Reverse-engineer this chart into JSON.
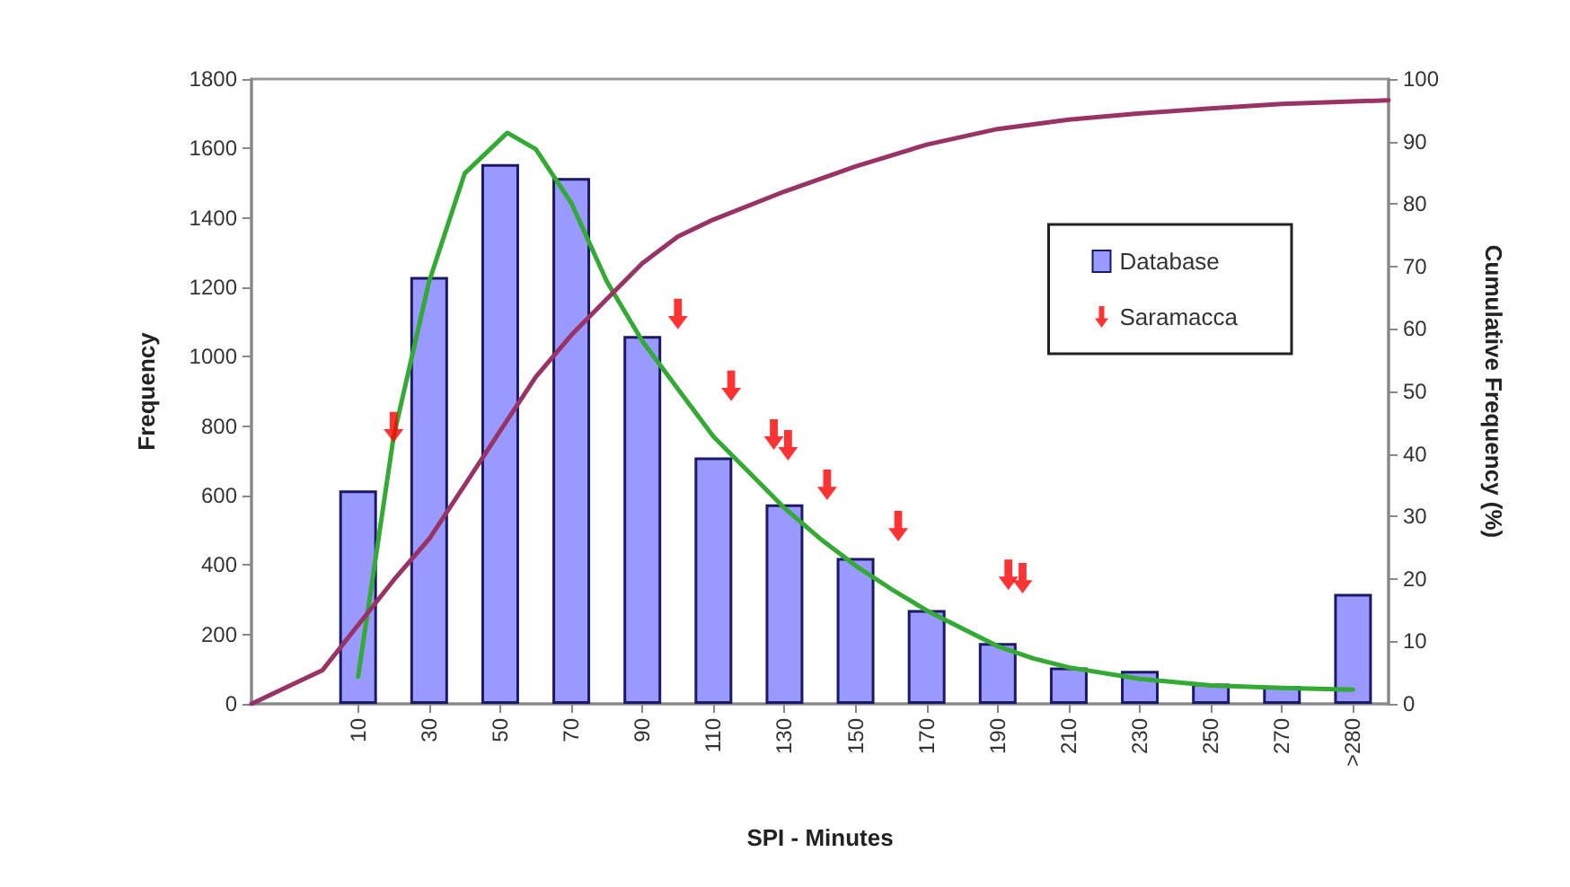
{
  "chart_data": {
    "type": "bar",
    "xlabel": "SPI - Minutes",
    "ylabel": "Frequency",
    "y2label": "Cumulative Frequency (%)",
    "xlim": [
      -20,
      300
    ],
    "xticks": [
      10,
      30,
      50,
      70,
      90,
      110,
      130,
      150,
      170,
      190,
      210,
      230,
      250,
      270,
      {
        "value": 290,
        "label": ">280"
      }
    ],
    "ylim": [
      0,
      1800
    ],
    "yticks": [
      0,
      200,
      400,
      600,
      800,
      1000,
      1200,
      1400,
      1600,
      1800
    ],
    "y2lim": [
      0,
      100
    ],
    "y2ticks": [
      0,
      10,
      20,
      30,
      40,
      50,
      60,
      70,
      80,
      90,
      100
    ],
    "grid": false,
    "legend": "right",
    "series": [
      {
        "name": "Database",
        "color": "#9999ff",
        "x": [
          10,
          30,
          50,
          70,
          90,
          110,
          130,
          150,
          170,
          190,
          210,
          230,
          250,
          270,
          290
        ],
        "values": [
          615,
          1230,
          1555,
          1515,
          1060,
          710,
          575,
          420,
          270,
          175,
          105,
          95,
          58,
          52,
          317
        ]
      },
      {
        "type": "line",
        "color": "#33aa33",
        "line_style": "solid",
        "marker": "none",
        "x": [
          10,
          20,
          30,
          40,
          52,
          60,
          70,
          80,
          90,
          100,
          110,
          120,
          130,
          140,
          150,
          160,
          170,
          180,
          190,
          200,
          210,
          230,
          250,
          270,
          290
        ],
        "values": [
          78,
          770,
          1217,
          1528,
          1645,
          1598,
          1443,
          1217,
          1045,
          907,
          770,
          667,
          564,
          476,
          398,
          331,
          269,
          217,
          166,
          131,
          105,
          72,
          53,
          46,
          41
        ]
      },
      {
        "type": "line",
        "axis": "y2",
        "color": "#993366",
        "line_style": "solid",
        "marker": "none",
        "x": [
          -20,
          0,
          10,
          20,
          30,
          40,
          50,
          60,
          70,
          80,
          90,
          100,
          110,
          130,
          150,
          170,
          190,
          210,
          230,
          250,
          270,
          300
        ],
        "values": [
          0,
          5.4,
          12.6,
          19.8,
          26.4,
          35,
          43.7,
          52.3,
          59,
          64.8,
          70.5,
          74.8,
          77.5,
          82,
          86,
          89.5,
          92,
          93.5,
          94.5,
          95.3,
          96,
          96.6
        ]
      },
      {
        "name": "Saramacca",
        "type": "scatter",
        "color": "#ff0000",
        "x": [
          20,
          100,
          115,
          127,
          131,
          142,
          162,
          193,
          197
        ],
        "values": [
          797,
          1123,
          916,
          776,
          745,
          631,
          512,
          372,
          362
        ]
      }
    ]
  }
}
